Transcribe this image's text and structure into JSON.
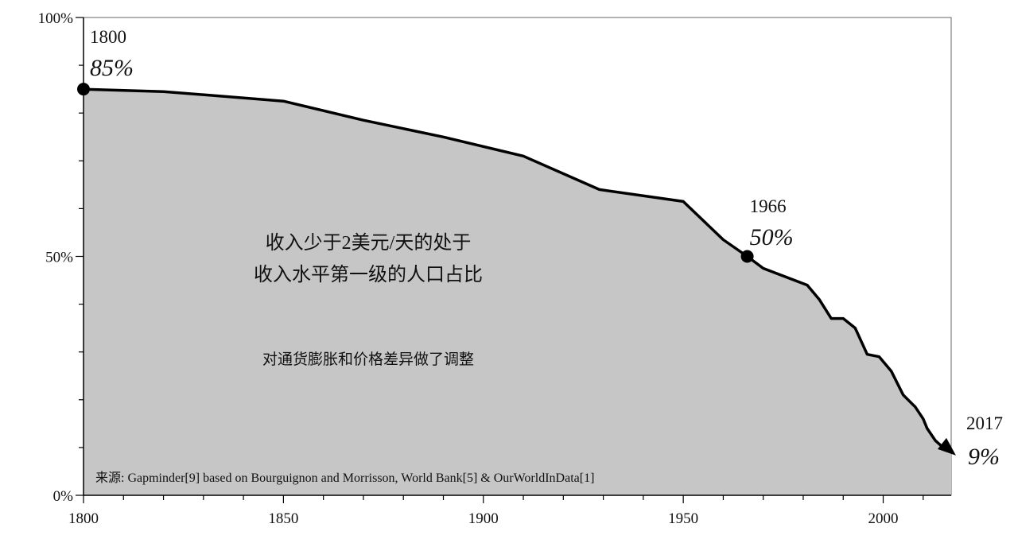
{
  "chart_data": {
    "type": "area",
    "title": "",
    "xlabel": "",
    "ylabel": "",
    "xlim": [
      1800,
      2017
    ],
    "ylim": [
      0,
      100
    ],
    "grid": false,
    "x_ticks": [
      "1800",
      "1850",
      "1900",
      "1950",
      "2000"
    ],
    "y_ticks": [
      "0%",
      "50%",
      "100%"
    ],
    "series": [
      {
        "x": [
          1800,
          1820,
          1850,
          1870,
          1890,
          1910,
          1929,
          1950,
          1960,
          1966,
          1970,
          1981,
          1984,
          1987,
          1990,
          1993,
          1996,
          1999,
          2002,
          2005,
          2008,
          2010,
          2011,
          2013,
          2015,
          2017
        ],
        "values": [
          85,
          84.5,
          82.5,
          78.5,
          75,
          71,
          64,
          61.5,
          53.5,
          50,
          47.5,
          44,
          41,
          37,
          37,
          35,
          29.5,
          29,
          26,
          21,
          18.5,
          16,
          14,
          11.5,
          10,
          9
        ]
      }
    ],
    "highlights": [
      {
        "x": 1800,
        "y": 85,
        "year_label": "1800",
        "value_label": "85%"
      },
      {
        "x": 1966,
        "y": 50,
        "year_label": "1966",
        "value_label": "50%"
      },
      {
        "x": 2017,
        "y": 9,
        "year_label": "2017",
        "value_label": "9%"
      }
    ],
    "annotations": {
      "main_line1": "收入少于2美元/天的处于",
      "main_line2": "收入水平第一级的人口占比",
      "note": "对通货膨胀和价格差异做了调整",
      "source": "来源: Gapminder[9] based on Bourguignon and Morrisson,  World Bank[5] & OurWorldInData[1]"
    },
    "colors": {
      "fill": "#c6c6c6",
      "line": "#000000"
    }
  }
}
